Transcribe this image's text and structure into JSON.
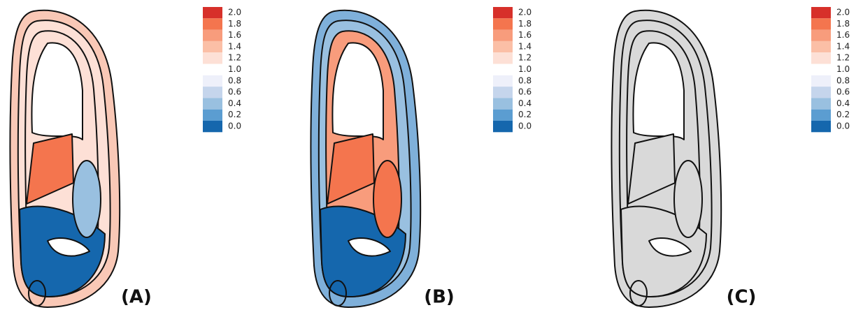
{
  "panels": [
    {
      "label": "(A)",
      "fills": {
        "outer": "#f9c8b6",
        "band": "#fde0d6",
        "cortex": "#fde0d6",
        "block": "#f4754e",
        "oval": "#99c0e0",
        "lower": "#1567ad"
      }
    },
    {
      "label": "(B)",
      "fills": {
        "outer": "#7fb0da",
        "band": "#99c0e0",
        "cortex": "#f89c7c",
        "block": "#f4754e",
        "oval": "#f4754e",
        "lower": "#1567ad"
      }
    },
    {
      "label": "(C)",
      "fills": {
        "outer": "#d9d9d9",
        "band": "#d9d9d9",
        "cortex": "#d9d9d9",
        "block": "#d9d9d9",
        "oval": "#d9d9d9",
        "lower": "#d9d9d9"
      }
    }
  ],
  "legend": [
    {
      "label": "2.0",
      "color": "#d7302a"
    },
    {
      "label": "1.8",
      "color": "#f4754e"
    },
    {
      "label": "1.6",
      "color": "#f89c7c"
    },
    {
      "label": "1.4",
      "color": "#fbbfa6"
    },
    {
      "label": "1.2",
      "color": "#fde0d6"
    },
    {
      "label": "1.0",
      "color": null
    },
    {
      "label": "0.8",
      "color": "#eef0fa"
    },
    {
      "label": "0.6",
      "color": "#c5d5ec"
    },
    {
      "label": "0.4",
      "color": "#99c0e0"
    },
    {
      "label": "0.2",
      "color": "#5b9dd1"
    },
    {
      "label": "0.0",
      "color": "#1567ad"
    }
  ]
}
